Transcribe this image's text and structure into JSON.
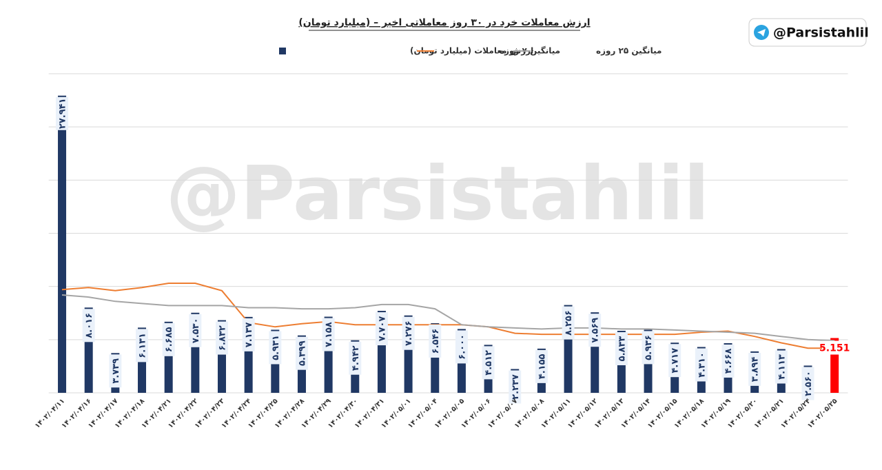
{
  "chart_data": {
    "type": "bar",
    "title": "ارزش معاملات خرد در ۳۰ روز معاملاتی اخیر – (میلیارد تومان)",
    "watermark": "@Parsistahlil",
    "badge": "@Parsistahlil",
    "categories": [
      "۱۴۰۲/۰۴/۱۱",
      "۱۴۰۲/۰۴/۱۶",
      "۱۴۰۲/۰۴/۱۷",
      "۱۴۰۲/۰۴/۱۸",
      "۱۴۰۲/۰۴/۲۱",
      "۱۴۰۲/۰۴/۲۲",
      "۱۴۰۲/۰۴/۲۳",
      "۱۴۰۲/۰۴/۲۴",
      "۱۴۰۲/۰۴/۲۵",
      "۱۴۰۲/۰۴/۲۸",
      "۱۴۰۲/۰۴/۲۹",
      "۱۴۰۲/۰۴/۳۰",
      "۱۴۰۲/۰۴/۳۱",
      "۱۴۰۲/۰۵/۰۱",
      "۱۴۰۲/۰۵/۰۴",
      "۱۴۰۲/۰۵/۰۵",
      "۱۴۰۲/۰۵/۰۶",
      "۱۴۰۲/۰۵/۰۷",
      "۱۴۰۲/۰۵/۰۸",
      "۱۴۰۲/۰۵/۱۱",
      "۱۴۰۲/۰۵/۱۲",
      "۱۴۰۲/۰۵/۱۳",
      "۱۴۰۲/۰۵/۱۴",
      "۱۴۰۲/۰۵/۱۵",
      "۱۴۰۲/۰۵/۱۸",
      "۱۴۰۲/۰۵/۱۹",
      "۱۴۰۲/۰۵/۲۰",
      "۱۴۰۲/۰۵/۲۱",
      "۱۴۰۲/۰۵/۲۴",
      "۱۴۰۲/۰۵/۲۵"
    ],
    "series": [
      {
        "name": "ارزش معاملات (میلیارد تومان)",
        "type": "bar",
        "color": "#203864",
        "highlight_color": "#ff0000",
        "values": [
          27.941,
          8.016,
          3.739,
          6.131,
          6.685,
          7.53,
          6.832,
          7.137,
          5.931,
          5.399,
          7.158,
          4.942,
          7.707,
          7.276,
          6.546,
          6.0,
          4.512,
          2.237,
          4.155,
          8.256,
          7.569,
          5.833,
          5.936,
          4.717,
          4.31,
          4.668,
          3.894,
          4.113,
          2.56,
          5.151
        ],
        "value_labels": [
          "۲۷.۹۴۱",
          "۸.۰۱۶",
          "۳.۷۳۹",
          "۶.۱۳۱",
          "۶.۶۸۵",
          "۷.۵۳۰",
          "۶.۸۳۲",
          "۷.۱۳۷",
          "۵.۹۳۱",
          "۵.۳۹۹",
          "۷.۱۵۸",
          "۴.۹۴۲",
          "۷.۷۰۷",
          "۷.۲۷۶",
          "۶.۵۴۶",
          "۶.۰۰۰",
          "۴.۵۱۲",
          "۲.۲۳۷",
          "۴.۱۵۵",
          "۸.۲۵۶",
          "۷.۵۶۹",
          "۵.۸۳۳",
          "۵.۹۳۶",
          "۴.۷۱۷",
          "۴.۳۱۰",
          "۴.۶۶۸",
          "۳.۸۹۴",
          "۴.۱۱۳",
          "۲.۵۶۰",
          "5.151"
        ]
      },
      {
        "name": "میانگین ۷ روزه",
        "type": "line",
        "color": "#ed7d31",
        "values": [
          9.7,
          9.9,
          9.6,
          9.9,
          10.3,
          10.3,
          9.6,
          6.6,
          6.2,
          6.5,
          6.7,
          6.4,
          6.4,
          6.4,
          6.4,
          6.4,
          6.2,
          5.6,
          5.5,
          5.5,
          5.5,
          5.5,
          5.5,
          5.5,
          5.7,
          5.8,
          5.3,
          4.7,
          4.2,
          4.2
        ]
      },
      {
        "name": "میانگین ۲۵ روزه",
        "type": "line",
        "color": "#a5a5a5",
        "values": [
          9.2,
          9.0,
          8.6,
          8.4,
          8.2,
          8.2,
          8.2,
          8.0,
          8.0,
          7.9,
          7.9,
          8.0,
          8.3,
          8.3,
          7.9,
          6.4,
          6.2,
          6.1,
          6.0,
          6.1,
          6.1,
          6.0,
          6.0,
          5.9,
          5.8,
          5.7,
          5.6,
          5.3,
          5.0,
          4.9
        ]
      }
    ],
    "ylim": [
      0,
      30
    ],
    "yticks": [
      0,
      5,
      10,
      15,
      20,
      25,
      30
    ],
    "grid": true
  }
}
